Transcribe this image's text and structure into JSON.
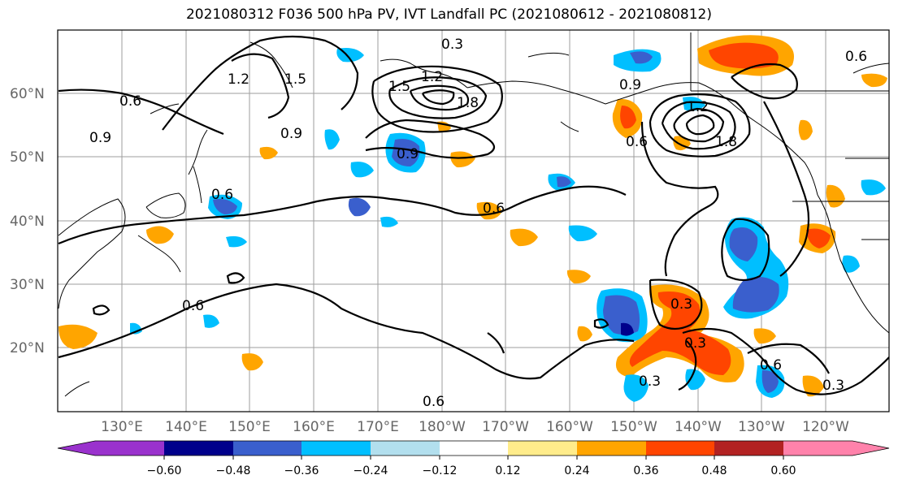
{
  "title": "2021080312 F036 500 hPa PV, IVT Landfall PC (2021080612 - 2021080812)",
  "map": {
    "lat_labels": [
      "60°N",
      "50°N",
      "40°N",
      "30°N",
      "20°N"
    ],
    "lon_labels": [
      "130°E",
      "140°E",
      "150°E",
      "160°E",
      "170°E",
      "180°W",
      "170°W",
      "160°W",
      "150°W",
      "140°W",
      "130°W",
      "120°W"
    ],
    "contour_labels": [
      "0.6",
      "1.2",
      "1.5",
      "0.3",
      "0.9",
      "1.5",
      "1.2",
      "1.8",
      "0.9",
      "0.9",
      "0.6",
      "1.2",
      "1.8",
      "0.6",
      "0.6",
      "0.6",
      "0.9",
      "0.6",
      "0.3",
      "0.3",
      "0.6",
      "0.3",
      "0.3",
      "0.6"
    ],
    "colors": {
      "neg_060": "#9a32cd",
      "neg_048": "#00008b",
      "neg_036": "#3a5fcd",
      "neg_024": "#00bfff",
      "neg_012": "#b2dfee",
      "zero": "#ffffff",
      "pos_012": "#ffec8b",
      "pos_024": "#ffa500",
      "pos_036": "#ff4500",
      "pos_048": "#b22222",
      "pos_060": "#ff82ab"
    }
  },
  "colorbar": {
    "ticks": [
      "−0.60",
      "−0.48",
      "−0.36",
      "−0.24",
      "−0.12",
      "0.12",
      "0.24",
      "0.36",
      "0.48",
      "0.60"
    ]
  }
}
